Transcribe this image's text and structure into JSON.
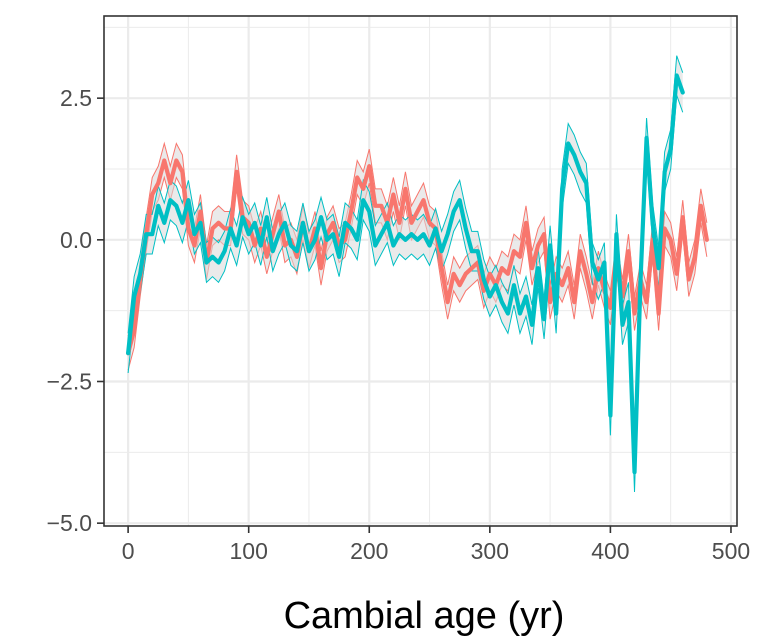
{
  "chart_data": {
    "type": "line",
    "title": "",
    "xlabel": "Cambial age (yr)",
    "ylabel": "",
    "xlim": [
      -20,
      505
    ],
    "ylim": [
      -5.05,
      3.95
    ],
    "x_ticks": [
      0,
      100,
      200,
      300,
      400,
      500
    ],
    "x_tick_labels": [
      "0",
      "100",
      "200",
      "300",
      "400",
      "500"
    ],
    "y_ticks": [
      -5.0,
      -2.5,
      0.0,
      2.5
    ],
    "y_tick_labels": [
      "−5.0",
      "−2.5",
      "0.0",
      "2.5"
    ],
    "grid": true,
    "legend": "none",
    "colors": {
      "series_1": "#F8766D",
      "series_2": "#00BFC4",
      "ribbon": "#d9d9d9",
      "grid": "#ebebeb",
      "panel_border": "#333333"
    },
    "series": [
      {
        "color": "#F8766D",
        "band_halfwidth": 0.3,
        "x": [
          0,
          5,
          10,
          15,
          20,
          25,
          30,
          35,
          40,
          45,
          50,
          55,
          60,
          65,
          70,
          75,
          80,
          85,
          90,
          95,
          100,
          105,
          110,
          115,
          120,
          125,
          130,
          135,
          140,
          145,
          150,
          155,
          160,
          165,
          170,
          175,
          180,
          185,
          190,
          195,
          200,
          205,
          210,
          215,
          220,
          225,
          230,
          235,
          240,
          245,
          250,
          255,
          260,
          265,
          270,
          275,
          280,
          285,
          290,
          295,
          300,
          305,
          310,
          315,
          320,
          325,
          330,
          335,
          340,
          345,
          350,
          355,
          360,
          365,
          370,
          375,
          380,
          385,
          390,
          395,
          400,
          405,
          410,
          415,
          420,
          425,
          430,
          435,
          440,
          445,
          450,
          455,
          460,
          465,
          470,
          475,
          480
        ],
        "y": [
          -2.0,
          -1.6,
          -0.7,
          0.1,
          0.8,
          1.0,
          1.4,
          1.0,
          1.4,
          1.2,
          0.2,
          -0.1,
          0.5,
          -0.4,
          0.2,
          0.3,
          0.2,
          0.2,
          1.2,
          0.4,
          0.3,
          -0.1,
          0.2,
          -0.3,
          0.1,
          0.5,
          -0.1,
          0.0,
          -0.3,
          0.3,
          -0.2,
          0.2,
          -0.5,
          0.1,
          0.3,
          -0.1,
          0.0,
          0.5,
          1.1,
          0.9,
          1.3,
          0.6,
          0.6,
          0.3,
          0.8,
          0.3,
          0.9,
          0.3,
          0.5,
          0.7,
          0.3,
          0.2,
          -0.5,
          -1.1,
          -0.6,
          -0.8,
          -0.6,
          -0.5,
          -0.4,
          -0.9,
          -0.6,
          -0.8,
          -0.5,
          -0.6,
          -0.2,
          -0.3,
          0.3,
          -0.5,
          -0.1,
          0.1,
          -1.1,
          -0.6,
          -0.8,
          -0.5,
          -1.1,
          -0.2,
          -0.6,
          -1.1,
          -0.5,
          -0.9,
          -1.2,
          -0.3,
          -1.0,
          -0.2,
          -1.3,
          -0.7,
          -1.1,
          0.0,
          -1.3,
          0.2,
          0.0,
          -0.6,
          0.4,
          -0.7,
          -0.3,
          0.6,
          0.0
        ]
      },
      {
        "color": "#00BFC4",
        "band_halfwidth": 0.35,
        "x": [
          0,
          5,
          10,
          15,
          20,
          25,
          30,
          35,
          40,
          45,
          50,
          55,
          60,
          65,
          70,
          75,
          80,
          85,
          90,
          95,
          100,
          105,
          110,
          115,
          120,
          125,
          130,
          135,
          140,
          145,
          150,
          155,
          160,
          165,
          170,
          175,
          180,
          185,
          190,
          195,
          200,
          205,
          210,
          215,
          220,
          225,
          230,
          235,
          240,
          245,
          250,
          255,
          260,
          265,
          270,
          275,
          280,
          285,
          290,
          295,
          300,
          305,
          310,
          315,
          320,
          325,
          330,
          335,
          340,
          345,
          350,
          355,
          360,
          365,
          370,
          375,
          380,
          385,
          390,
          395,
          400,
          405,
          410,
          415,
          420,
          425,
          430,
          435,
          440,
          445,
          450,
          455,
          460
        ],
        "y": [
          -2.0,
          -1.0,
          -0.6,
          0.1,
          0.1,
          0.6,
          0.3,
          0.7,
          0.6,
          0.3,
          0.7,
          0.1,
          0.3,
          -0.4,
          -0.3,
          -0.4,
          -0.2,
          0.2,
          -0.1,
          0.4,
          0.1,
          0.3,
          -0.1,
          0.4,
          -0.2,
          0.1,
          0.3,
          -0.1,
          -0.2,
          0.3,
          -0.2,
          0.0,
          0.4,
          0.0,
          0.1,
          -0.3,
          0.3,
          0.2,
          0.0,
          0.7,
          0.5,
          -0.1,
          0.1,
          0.3,
          -0.1,
          0.1,
          0.0,
          0.1,
          0.0,
          0.1,
          -0.1,
          0.2,
          -0.2,
          0.1,
          0.5,
          0.7,
          0.2,
          -0.2,
          -0.2,
          -0.7,
          -1.0,
          -0.8,
          -1.1,
          -1.3,
          -0.8,
          -1.3,
          -1.0,
          -1.5,
          -0.5,
          -1.4,
          -0.1,
          -1.3,
          0.9,
          1.7,
          1.5,
          1.2,
          1.0,
          -0.4,
          -0.7,
          -0.4,
          -3.1,
          0.1,
          -1.5,
          -1.1,
          -4.1,
          -0.7,
          1.8,
          0.3,
          -0.5,
          1.2,
          1.6,
          2.9,
          2.6
        ]
      }
    ]
  }
}
